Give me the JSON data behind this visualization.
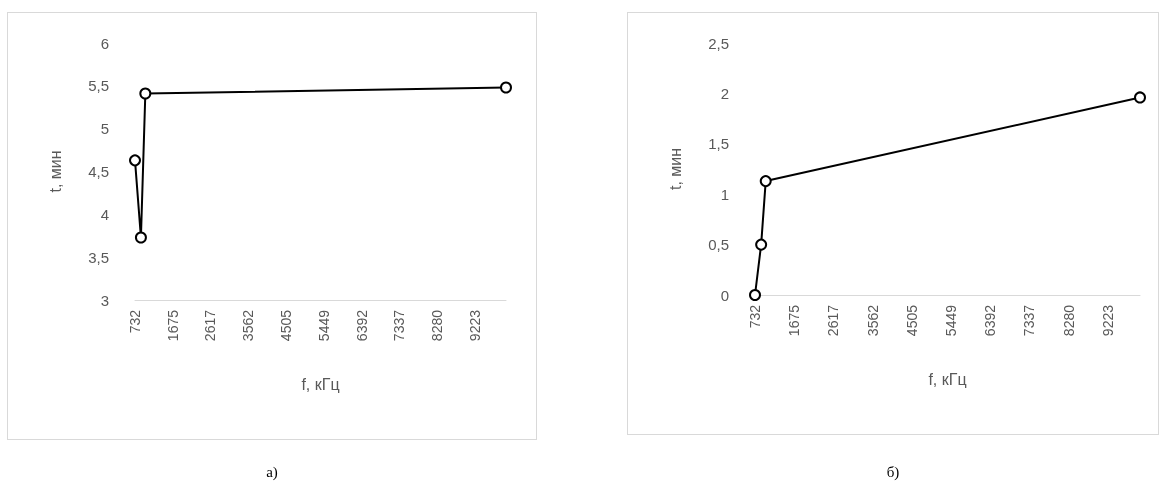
{
  "chart_data": [
    {
      "type": "line",
      "xlabel": "f, кГц",
      "ylabel": "t, мин",
      "annotations": [
        "а)"
      ],
      "x": [
        732,
        880,
        990,
        10000
      ],
      "series": [
        {
          "color": "#000000",
          "values": [
            4.63,
            3.73,
            5.41,
            5.48
          ]
        }
      ],
      "xlim": [
        732,
        10000
      ],
      "xticks": [
        732,
        1675,
        2617,
        3562,
        4505,
        5449,
        6392,
        7337,
        8280,
        9223
      ],
      "ylim": [
        3,
        6
      ],
      "yticks": [
        3,
        {
          "value": 3.5,
          "label": "3,5"
        },
        4,
        {
          "value": 4.5,
          "label": "4,5"
        },
        5,
        {
          "value": 5.5,
          "label": "5,5"
        },
        6
      ],
      "grid": false,
      "marker": "circle",
      "line_style": "solid"
    },
    {
      "type": "line",
      "xlabel": "f, кГц",
      "ylabel": "t, мин",
      "annotations": [
        "б)"
      ],
      "x": [
        732,
        880,
        990,
        10000
      ],
      "series": [
        {
          "color": "#000000",
          "values": [
            0,
            0.5,
            1.13,
            1.96
          ]
        }
      ],
      "xlim": [
        732,
        10000
      ],
      "xticks": [
        732,
        1675,
        2617,
        3562,
        4505,
        5449,
        6392,
        7337,
        8280,
        9223
      ],
      "ylim": [
        0,
        2.5
      ],
      "yticks": [
        0,
        {
          "value": 0.5,
          "label": "0,5"
        },
        1,
        {
          "value": 1.5,
          "label": "1,5"
        },
        2,
        {
          "value": 2.5,
          "label": "2,5"
        }
      ],
      "grid": false,
      "marker": "circle",
      "line_style": "solid"
    }
  ]
}
